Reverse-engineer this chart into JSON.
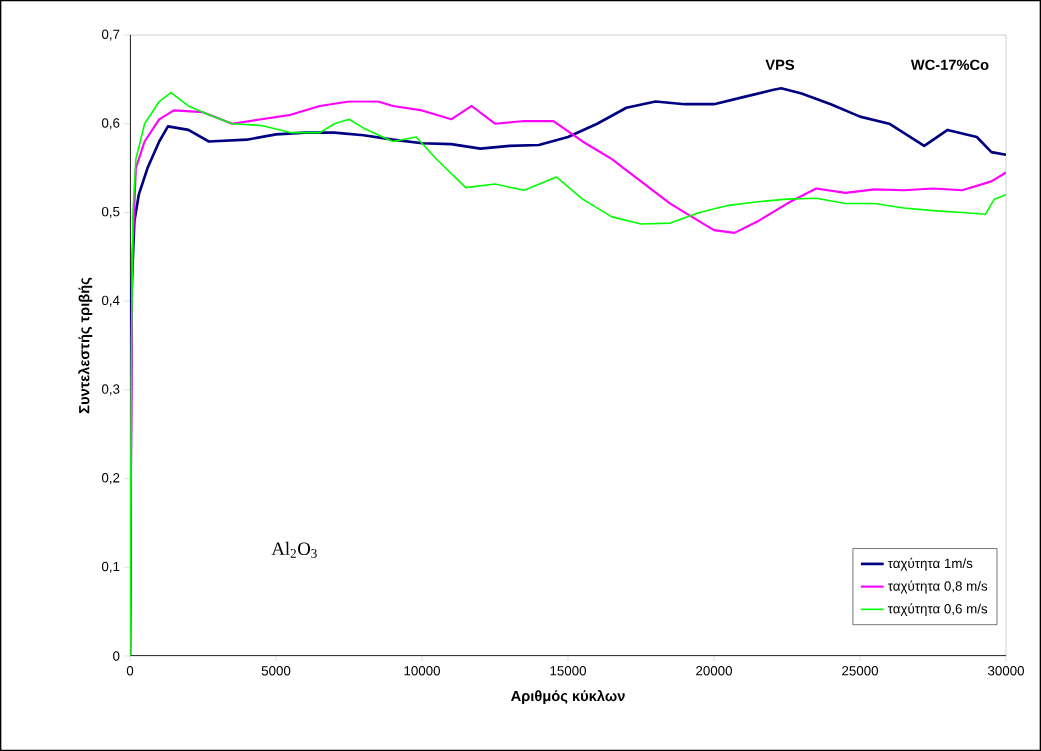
{
  "chart_data": {
    "type": "line",
    "xlabel": "Αριθμός κύκλων",
    "ylabel": "Συντελεστής τριβής",
    "annotations": [
      "VPS",
      "WC-17%Co",
      "Al$_{2}$O$_{3}$"
    ],
    "xlim": [
      0,
      30000
    ],
    "xticks": [
      0,
      5000,
      10000,
      15000,
      20000,
      25000,
      30000
    ],
    "ylim": [
      0,
      0.7
    ],
    "yticks": [
      {
        "value": 0,
        "label": "0"
      },
      {
        "value": 0.1,
        "label": "0,1"
      },
      {
        "value": 0.2,
        "label": "0,2"
      },
      {
        "value": 0.3,
        "label": "0,3"
      },
      {
        "value": 0.4,
        "label": "0,4"
      },
      {
        "value": 0.5,
        "label": "0,5"
      },
      {
        "value": 0.6,
        "label": "0,6"
      },
      {
        "value": 0.7,
        "label": "0,7"
      }
    ],
    "legend": "bottom right",
    "marker": "none",
    "line_style": "solid",
    "series": [
      {
        "name": "ταχύτητα 1m/s",
        "color": "#000080",
        "x": [
          0,
          50,
          150,
          300,
          600,
          1000,
          1300,
          2000,
          2700,
          4000,
          5000,
          6000,
          7000,
          8000,
          9000,
          10000,
          11000,
          12000,
          13000,
          14000,
          15000,
          16000,
          17000,
          18000,
          19000,
          20000,
          21000,
          22000,
          22300,
          23000,
          24000,
          25000,
          26000,
          27200,
          28000,
          29000,
          29500,
          30000
        ],
        "values": [
          0.0,
          0.41,
          0.49,
          0.52,
          0.55,
          0.58,
          0.597,
          0.593,
          0.58,
          0.582,
          0.588,
          0.59,
          0.59,
          0.587,
          0.582,
          0.578,
          0.577,
          0.572,
          0.575,
          0.576,
          0.585,
          0.6,
          0.618,
          0.625,
          0.622,
          0.622,
          0.63,
          0.638,
          0.64,
          0.634,
          0.622,
          0.608,
          0.6,
          0.575,
          0.593,
          0.585,
          0.568,
          0.565
        ]
      },
      {
        "name": "ταχύτητα 0,8 m/s",
        "color": "#ff00ff",
        "x": [
          0,
          30,
          80,
          200,
          500,
          1000,
          1500,
          2500,
          3500,
          4500,
          5500,
          6500,
          7500,
          8500,
          9000,
          10000,
          11000,
          11700,
          12500,
          13500,
          14500,
          15500,
          16500,
          17500,
          18500,
          19500,
          20000,
          20700,
          21500,
          22500,
          23500,
          24500,
          25500,
          26500,
          27500,
          28500,
          29500,
          30000
        ],
        "values": [
          0.0,
          0.2,
          0.45,
          0.55,
          0.58,
          0.605,
          0.615,
          0.613,
          0.6,
          0.605,
          0.61,
          0.62,
          0.625,
          0.625,
          0.62,
          0.615,
          0.605,
          0.62,
          0.6,
          0.603,
          0.603,
          0.58,
          0.56,
          0.535,
          0.51,
          0.49,
          0.48,
          0.477,
          0.49,
          0.51,
          0.527,
          0.522,
          0.526,
          0.525,
          0.527,
          0.525,
          0.535,
          0.545
        ]
      },
      {
        "name": "ταχύτητα 0,6 m/s",
        "color": "#00ff00",
        "x": [
          0,
          50,
          100,
          200,
          500,
          1000,
          1400,
          2000,
          2700,
          3500,
          4500,
          5500,
          6500,
          7000,
          7500,
          8000,
          9000,
          9800,
          10500,
          11500,
          12500,
          13500,
          14600,
          15500,
          16500,
          17500,
          18500,
          19500,
          20500,
          21500,
          22500,
          23500,
          24500,
          25500,
          26500,
          27500,
          28500,
          29300,
          29600,
          30000
        ],
        "values": [
          0.0,
          0.35,
          0.5,
          0.56,
          0.6,
          0.625,
          0.635,
          0.62,
          0.61,
          0.6,
          0.598,
          0.59,
          0.59,
          0.6,
          0.605,
          0.595,
          0.58,
          0.585,
          0.56,
          0.528,
          0.532,
          0.525,
          0.54,
          0.515,
          0.495,
          0.487,
          0.488,
          0.5,
          0.508,
          0.512,
          0.515,
          0.516,
          0.51,
          0.51,
          0.505,
          0.502,
          0.5,
          0.498,
          0.515,
          0.52
        ]
      }
    ]
  }
}
